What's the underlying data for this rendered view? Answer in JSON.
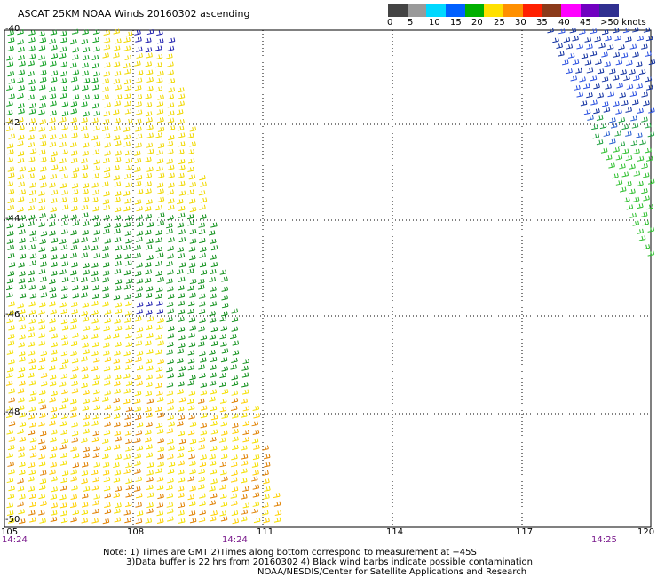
{
  "title": "ASCAT 25KM NOAA Winds 20160302 ascending",
  "color_scale": {
    "labels": [
      "0",
      "5",
      "10",
      "15",
      "20",
      "25",
      "30",
      "35",
      "40",
      "45",
      ">50 knots"
    ],
    "colors": [
      "#444444",
      "#9a9a9a",
      "#00d8ff",
      "#0060ff",
      "#00b000",
      "#ffe000",
      "#ff9000",
      "#ff2000",
      "#8b3a1a",
      "#ff00ff",
      "#7000c0",
      "#303090"
    ]
  },
  "axes": {
    "lon_labels": [
      "105",
      "108",
      "111",
      "114",
      "117",
      "120"
    ],
    "lat_labels": [
      "-40",
      "-42",
      "-44",
      "-46",
      "-48",
      "-50"
    ]
  },
  "times": [
    "14:24",
    "14:24",
    "14:25"
  ],
  "notes": [
    "Note: 1) Times are GMT 2)Times along bottom correspond to measurement at −45S",
    "3)Data buffer is 22 hrs from 20160302 4) Black wind barbs indicate possible contamination",
    "NOAA/NESDIS/Center for Satellite Applications and Research"
  ]
}
